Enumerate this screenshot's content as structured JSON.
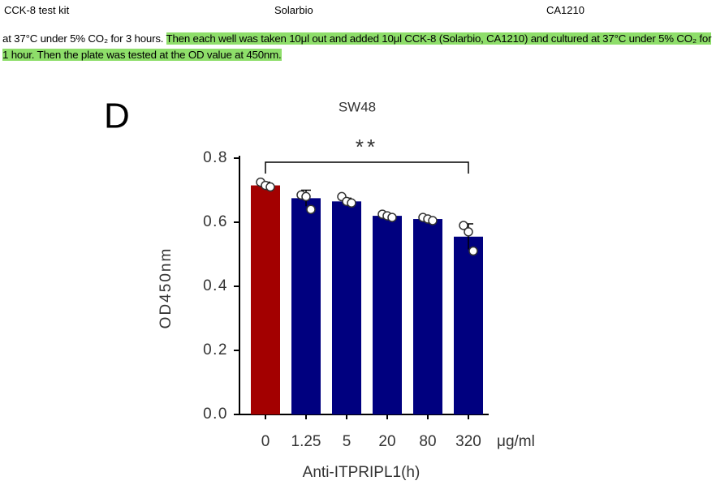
{
  "table_row": [
    "CCK-8 test kit",
    "Solarbio",
    "CA1210"
  ],
  "paragraph": {
    "plain": "at 37°C under 5% CO₂ for 3 hours.",
    "highlight": "Then each well was taken 10μl out and added 10μl CCK-8 (Solarbio, CA1210) and cultured at 37°C under 5% CO₂ for 1 hour. Then the plate was tested at the OD value at 450nm."
  },
  "chart_data": {
    "type": "bar",
    "panel": "D",
    "title": "SW48",
    "ylabel": "OD450nm",
    "xlabel": "Anti-ITPRIPL1(h)",
    "unit": "μg/ml",
    "categories": [
      "0",
      "1.25",
      "5",
      "20",
      "80",
      "320"
    ],
    "values": [
      0.715,
      0.675,
      0.665,
      0.62,
      0.61,
      0.555
    ],
    "errors": [
      0.01,
      0.025,
      0.01,
      0.005,
      0.005,
      0.04
    ],
    "points": [
      [
        0.725,
        0.715,
        0.71
      ],
      [
        0.685,
        0.68,
        0.64
      ],
      [
        0.68,
        0.665,
        0.66
      ],
      [
        0.625,
        0.62,
        0.615
      ],
      [
        0.615,
        0.61,
        0.605
      ],
      [
        0.59,
        0.57,
        0.51
      ]
    ],
    "colors": [
      "#a30000",
      "#00007f",
      "#00007f",
      "#00007f",
      "#00007f",
      "#00007f"
    ],
    "significance": "**",
    "ylim": [
      0,
      0.8
    ],
    "yticks": [
      {
        "value": 0,
        "label": "0.0"
      },
      0.2,
      0.4,
      0.6,
      0.8
    ]
  }
}
